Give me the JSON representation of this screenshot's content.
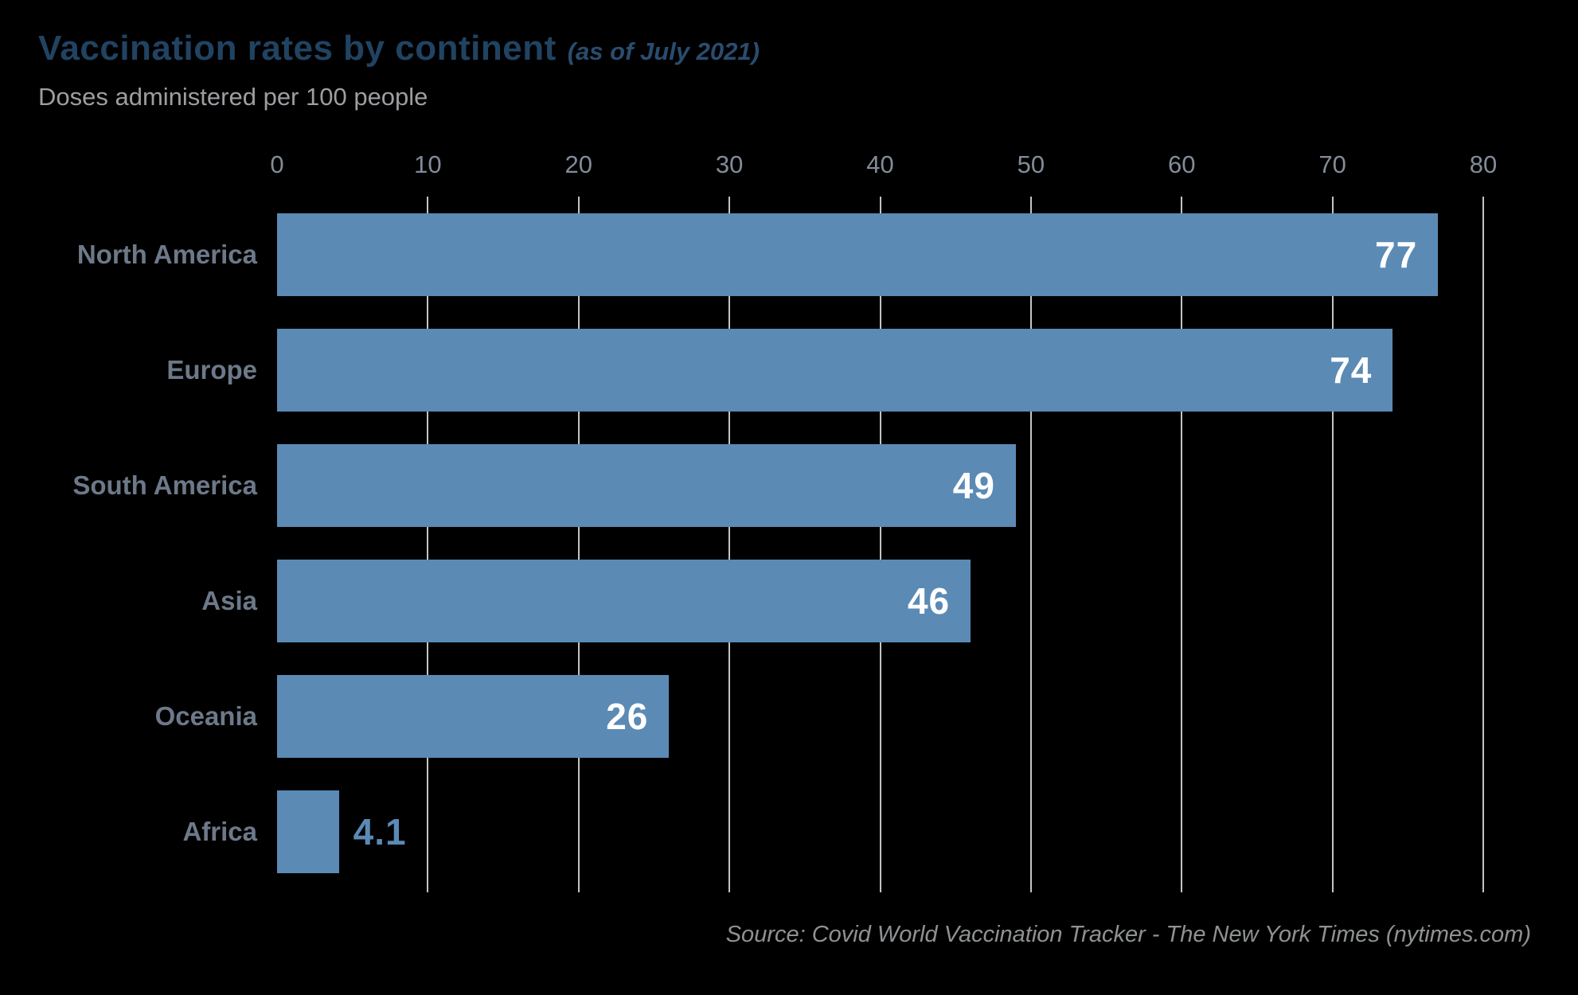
{
  "header": {
    "title": "Vaccination rates by continent",
    "title_note": "(as of July 2021)",
    "subtitle": "Doses administered per 100 people"
  },
  "source": "Source: Covid World Vaccination Tracker - The New York Times (nytimes.com)",
  "chart_data": {
    "type": "bar",
    "orientation": "horizontal",
    "title": "Vaccination rates by continent (as of July 2021)",
    "subtitle": "Doses administered per 100 people",
    "categories": [
      "North America",
      "Europe",
      "South America",
      "Asia",
      "Oceania",
      "Africa"
    ],
    "values": [
      77,
      74,
      49,
      46,
      26,
      4.1
    ],
    "value_labels": [
      "77",
      "74",
      "49",
      "46",
      "26",
      "4.1"
    ],
    "xlim": [
      0,
      80
    ],
    "xticks": [
      0,
      10,
      20,
      30,
      40,
      50,
      60,
      70,
      80
    ],
    "grid": "vertical gridlines at 10..80, drawn behind bars, no 0 line",
    "legend": "none",
    "bar_color": "#5b8ab5",
    "value_label_inside_color": "#ffffff",
    "value_label_outside_color": "#5b8ab5",
    "outside_label_threshold": 10
  },
  "colors": {
    "background": "#000000",
    "title": "#214362",
    "title_note": "#2a4c6e",
    "subtitle": "#9c9ea1",
    "tick_label": "#828c99",
    "category_label": "#6d7989",
    "gridline": "#c2c5c8",
    "bar": "#5b8ab5",
    "value_inside": "#ffffff",
    "value_outside": "#5b8ab5",
    "source": "#8f9193"
  }
}
